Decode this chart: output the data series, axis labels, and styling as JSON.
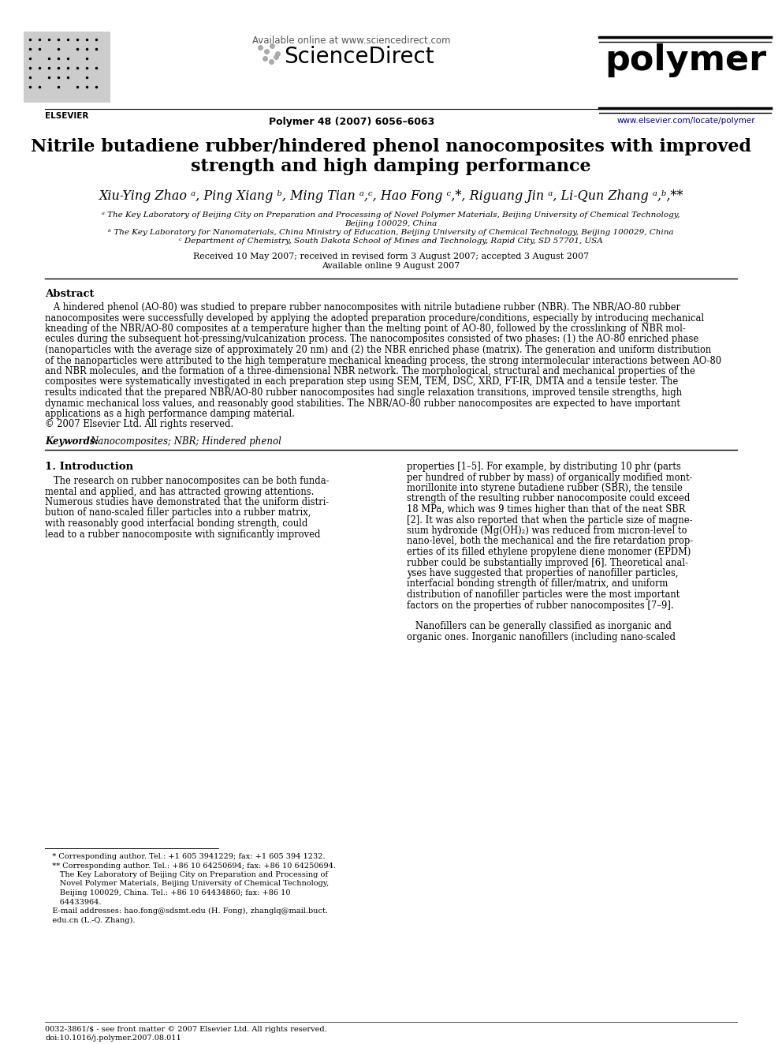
{
  "page_bg": "#ffffff",
  "header_available": "Available online at www.sciencedirect.com",
  "header_sd": "ScienceDirect",
  "journal_name": "polymer",
  "journal_info": "Polymer 48 (2007) 6056–6063",
  "journal_url": "www.elsevier.com/locate/polymer",
  "title_line1": "Nitrile butadiene rubber/hindered phenol nanocomposites with improved",
  "title_line2": "strength and high damping performance",
  "authors_str": "Xiu-Ying Zhao ᵃ, Ping Xiang ᵇ, Ming Tian ᵃ,ᶜ, Hao Fong ᶜ,*, Riguang Jin ᵃ, Li-Qun Zhang ᵃ,ᵇ,**",
  "affil_a": "ᵃ The Key Laboratory of Beijing City on Preparation and Processing of Novel Polymer Materials, Beijing University of Chemical Technology,",
  "affil_a2": "Beijing 100029, China",
  "affil_b": "ᵇ The Key Laboratory for Nanomaterials, China Ministry of Education, Beijing University of Chemical Technology, Beijing 100029, China",
  "affil_c": "ᶜ Department of Chemistry, South Dakota School of Mines and Technology, Rapid City, SD 57701, USA",
  "received": "Received 10 May 2007; received in revised form 3 August 2007; accepted 3 August 2007",
  "available_online": "Available online 9 August 2007",
  "abstract_title": "Abstract",
  "abstract_body": "   A hindered phenol (AO-80) was studied to prepare rubber nanocomposites with nitrile butadiene rubber (NBR). The NBR/AO-80 rubber nanocomposites were successfully developed by applying the adopted preparation procedure/conditions, especially by introducing mechanical kneading of the NBR/AO-80 composites at a temperature higher than the melting point of AO-80, followed by the crosslinking of NBR molecules during the subsequent hot-pressing/vulcanization process. The nanocomposites consisted of two phases: (1) the AO-80 enriched phase (nanoparticles with the average size of approximately 20 nm) and (2) the NBR enriched phase (matrix). The generation and uniform distribution of the nanoparticles were attributed to the high temperature mechanical kneading process, the strong intermolecular interactions between AO-80 and NBR molecules, and the formation of a three-dimensional NBR network. The morphological, structural and mechanical properties of the composites were systematically investigated in each preparation step using SEM, TEM, DSC, XRD, FT-IR, DMTA and a tensile tester. The results indicated that the prepared NBR/AO-80 rubber nanocomposites had single relaxation transitions, improved tensile strengths, high dynamic mechanical loss values, and reasonably good stabilities. The NBR/AO-80 rubber nanocomposites are expected to have important applications as a high performance damping material.\n© 2007 Elsevier Ltd. All rights reserved.",
  "keywords_bold": "Keywords: ",
  "keywords_rest": "Nanocomposites; NBR; Hindered phenol",
  "intro_head": "1. Introduction",
  "intro_c1_l1": "   The research on rubber nanocomposites can be both funda-",
  "intro_c1_l2": "mental and applied, and has attracted growing attentions.",
  "intro_c1_l3": "Numerous studies have demonstrated that the uniform distri-",
  "intro_c1_l4": "bution of nano-scaled filler particles into a rubber matrix,",
  "intro_c1_l5": "with reasonably good interfacial bonding strength, could",
  "intro_c1_l6": "lead to a rubber nanocomposite with significantly improved",
  "intro_c2_l1": "properties [1–5]. For example, by distributing 10 phr (parts",
  "intro_c2_l2": "per hundred of rubber by mass) of organically modified mont-",
  "intro_c2_l3": "morillonite into styrene butadiene rubber (SBR), the tensile",
  "intro_c2_l4": "strength of the resulting rubber nanocomposite could exceed",
  "intro_c2_l5": "18 MPa, which was 9 times higher than that of the neat SBR",
  "intro_c2_l6": "[2]. It was also reported that when the particle size of magne-",
  "intro_c2_l7": "sium hydroxide (Mg(OH)₂) was reduced from micron-level to",
  "intro_c2_l8": "nano-level, both the mechanical and the fire retardation prop-",
  "intro_c2_l9": "erties of its filled ethylene propylene diene monomer (EPDM)",
  "intro_c2_l10": "rubber could be substantially improved [6]. Theoretical anal-",
  "intro_c2_l11": "yses have suggested that properties of nanofiller particles,",
  "intro_c2_l12": "interfacial bonding strength of filler/matrix, and uniform",
  "intro_c2_l13": "distribution of nanofiller particles were the most important",
  "intro_c2_l14": "factors on the properties of rubber nanocomposites [7–9].",
  "intro_c2_l15": "",
  "intro_c2_l16": "   Nanofillers can be generally classified as inorganic and",
  "intro_c2_l17": "organic ones. Inorganic nanofillers (including nano-scaled",
  "fn_line1": "   * Corresponding author. Tel.: +1 605 3941229; fax: +1 605 394 1232.",
  "fn_line2": "   ** Corresponding author. Tel.: +86 10 64250694; fax: +86 10 64250694.",
  "fn_line3": "      The Key Laboratory of Beijing City on Preparation and Processing of",
  "fn_line4": "      Novel Polymer Materials, Beijing University of Chemical Technology,",
  "fn_line5": "      Beijing 100029, China. Tel.: +86 10 64434860; fax: +86 10",
  "fn_line6": "      64433964.",
  "fn_line7": "   E-mail addresses: hao.fong@sdsmt.edu (H. Fong), zhanglq@mail.buct.",
  "fn_line8": "   edu.cn (L.-Q. Zhang).",
  "footer1": "0032-3861/$ - see front matter © 2007 Elsevier Ltd. All rights reserved.",
  "footer2": "doi:10.1016/j.polymer.2007.08.011"
}
